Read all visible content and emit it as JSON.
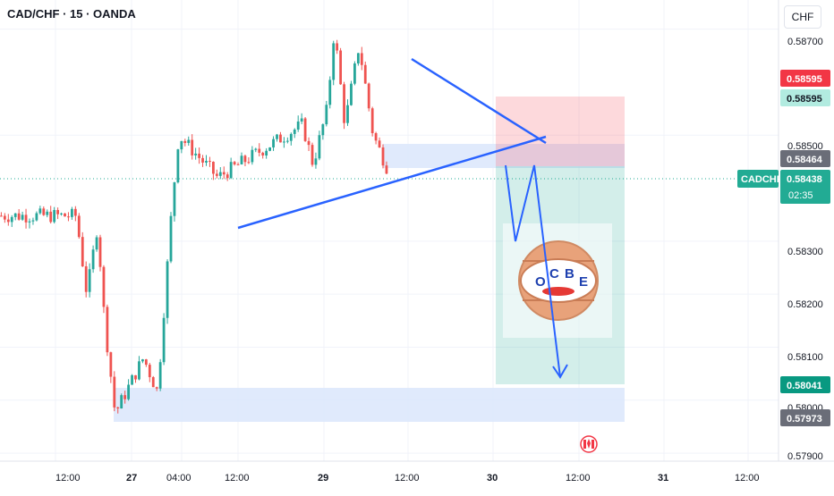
{
  "header": {
    "title": "CAD/CHF · 15 · OANDA",
    "currency": "CHF"
  },
  "price_axis": {
    "ticks": [
      "0.58700",
      "0.58500",
      "0.58300",
      "0.58200",
      "0.58100",
      "0.58000",
      "0.57900"
    ]
  },
  "time_axis": {
    "labels": [
      "12:00",
      "27",
      "04:00",
      "12:00",
      "29",
      "12:00",
      "30",
      "12:00",
      "31",
      "12:00"
    ]
  },
  "price_tags": {
    "stop_loss": "0.58595",
    "entry_upper": "0.58595",
    "zone": "0.58464",
    "current_symbol": "CADCHF",
    "current_price": "0.58438",
    "countdown": "02:35",
    "target": "0.58041",
    "low": "0.57973"
  },
  "watermark": {
    "letters": [
      "O",
      "C",
      "B",
      "E"
    ]
  },
  "colors": {
    "up": "#26a69a",
    "down": "#ef5350",
    "tag_red": "#f23645",
    "tag_green": "#089981",
    "tag_teal": "#22ab94",
    "tag_grey": "#6a6d78",
    "line_blue": "#2962ff",
    "zone_blue": "#dbe6fb"
  },
  "icons": {
    "event_marker": "canada-flag-icon"
  },
  "chart_data": {
    "type": "candlestick",
    "ylim": [
      0.57885,
      0.58755
    ],
    "key_points": [
      {
        "x": "26 08:00",
        "y": 0.58348
      },
      {
        "x": "26 11:00",
        "y": 0.582
      },
      {
        "x": "26 14:00",
        "y": 0.5833
      },
      {
        "x": "26 16:00",
        "y": 0.5815
      },
      {
        "x": "26 19:00",
        "y": 0.57975
      },
      {
        "x": "27 03:00",
        "y": 0.5808
      },
      {
        "x": "27 07:00",
        "y": 0.58015
      },
      {
        "x": "27 11:00",
        "y": 0.5836
      },
      {
        "x": "27 13:00",
        "y": 0.585
      },
      {
        "x": "28 00:00",
        "y": 0.5842
      },
      {
        "x": "29 00:00",
        "y": 0.5852
      },
      {
        "x": "29 03:00",
        "y": 0.58445
      },
      {
        "x": "29 07:00",
        "y": 0.5855
      },
      {
        "x": "29 09:00",
        "y": 0.587
      },
      {
        "x": "29 12:00",
        "y": 0.5852
      },
      {
        "x": "29 16:00",
        "y": 0.5867
      },
      {
        "x": "29 20:00",
        "y": 0.585
      },
      {
        "x": "30 00:00",
        "y": 0.58438
      }
    ]
  }
}
